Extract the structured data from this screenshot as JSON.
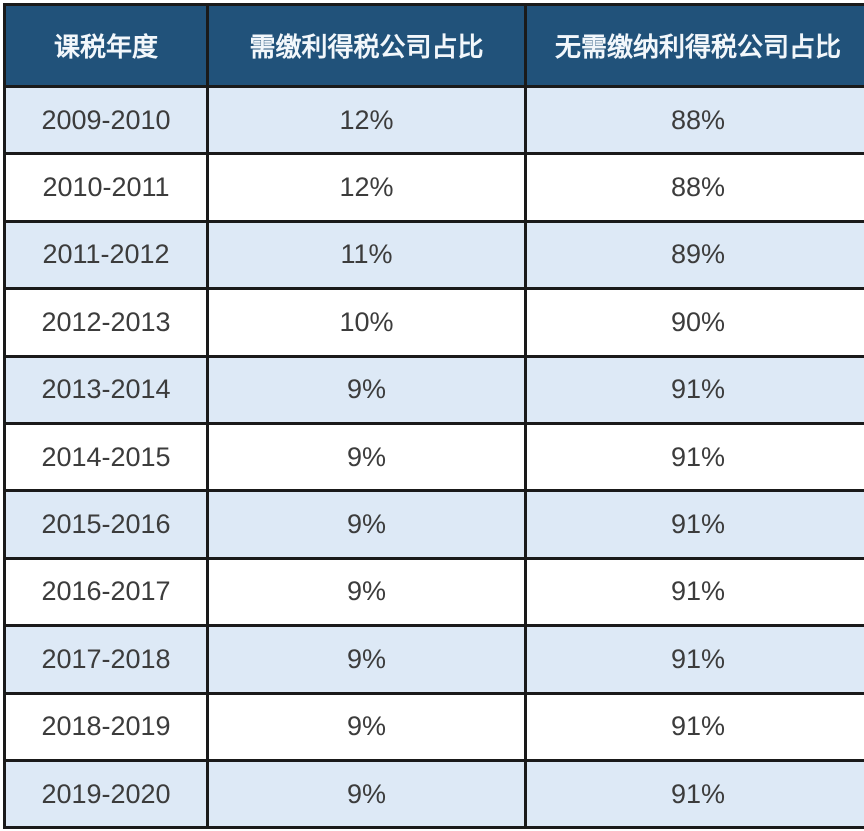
{
  "table": {
    "columns": [
      "课税年度",
      "需缴利得税公司占比",
      "无需缴纳利得税公司占比"
    ],
    "rows": [
      [
        "2009-2010",
        "12%",
        "88%"
      ],
      [
        "2010-2011",
        "12%",
        "88%"
      ],
      [
        "2011-2012",
        "11%",
        "89%"
      ],
      [
        "2012-2013",
        "10%",
        "90%"
      ],
      [
        "2013-2014",
        "9%",
        "91%"
      ],
      [
        "2014-2015",
        "9%",
        "91%"
      ],
      [
        "2015-2016",
        "9%",
        "91%"
      ],
      [
        "2016-2017",
        "9%",
        "91%"
      ],
      [
        "2017-2018",
        "9%",
        "91%"
      ],
      [
        "2018-2019",
        "9%",
        "91%"
      ],
      [
        "2019-2020",
        "9%",
        "91%"
      ]
    ]
  },
  "chart_data": {
    "type": "table",
    "title": "",
    "columns": [
      "课税年度",
      "需缴利得税公司占比",
      "无需缴纳利得税公司占比"
    ],
    "categories": [
      "2009-2010",
      "2010-2011",
      "2011-2012",
      "2012-2013",
      "2013-2014",
      "2014-2015",
      "2015-2016",
      "2016-2017",
      "2017-2018",
      "2018-2019",
      "2019-2020"
    ],
    "series": [
      {
        "name": "需缴利得税公司占比",
        "values": [
          12,
          12,
          11,
          10,
          9,
          9,
          9,
          9,
          9,
          9,
          9
        ],
        "unit": "%"
      },
      {
        "name": "无需缴纳利得税公司占比",
        "values": [
          88,
          88,
          89,
          90,
          91,
          91,
          91,
          91,
          91,
          91,
          91
        ],
        "unit": "%"
      }
    ],
    "rows": [
      [
        "2009-2010",
        "12%",
        "88%"
      ],
      [
        "2010-2011",
        "12%",
        "88%"
      ],
      [
        "2011-2012",
        "11%",
        "89%"
      ],
      [
        "2012-2013",
        "10%",
        "90%"
      ],
      [
        "2013-2014",
        "9%",
        "91%"
      ],
      [
        "2014-2015",
        "9%",
        "91%"
      ],
      [
        "2015-2016",
        "9%",
        "91%"
      ],
      [
        "2016-2017",
        "9%",
        "91%"
      ],
      [
        "2017-2018",
        "9%",
        "91%"
      ],
      [
        "2018-2019",
        "9%",
        "91%"
      ],
      [
        "2019-2020",
        "9%",
        "91%"
      ]
    ]
  },
  "colors": {
    "header_bg": "#21527a",
    "header_text": "#f2f7fb",
    "row_alt_bg": "#dde9f6",
    "row_bg": "#ffffff",
    "border": "#1a1a1a",
    "cell_text": "#3c3c3c"
  }
}
